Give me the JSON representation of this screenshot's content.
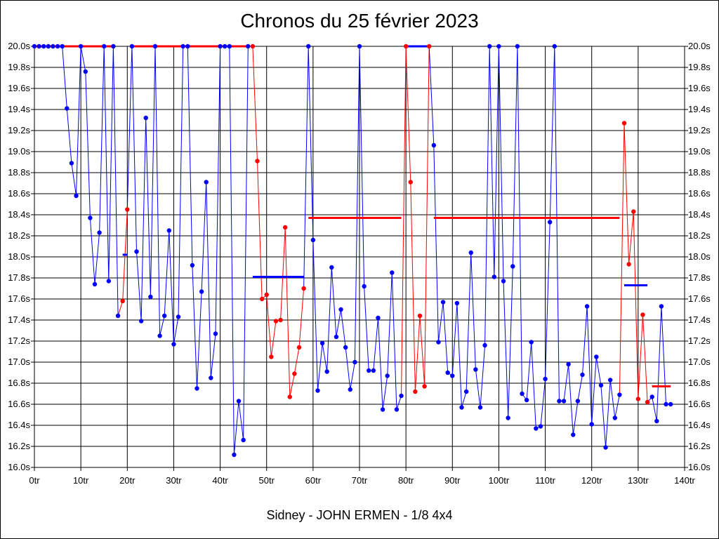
{
  "chart_data": {
    "type": "line",
    "title": "Chronos du 25 février 2023",
    "subtitle": "Sidney - JOHN ERMEN - 1/8 4x4",
    "xlabel": "",
    "ylabel": "",
    "xlim": [
      0,
      140
    ],
    "ylim": [
      16.0,
      20.0
    ],
    "grid": true,
    "x_ticks": [
      "0tr",
      "10tr",
      "20tr",
      "30tr",
      "40tr",
      "50tr",
      "60tr",
      "70tr",
      "80tr",
      "90tr",
      "100tr",
      "110tr",
      "120tr",
      "130tr",
      "140tr"
    ],
    "y_ticks": [
      "16.0s",
      "16.2s",
      "16.4s",
      "16.6s",
      "16.8s",
      "17.0s",
      "17.2s",
      "17.4s",
      "17.6s",
      "17.8s",
      "18.0s",
      "18.2s",
      "18.4s",
      "18.6s",
      "18.8s",
      "19.0s",
      "19.2s",
      "19.4s",
      "19.6s",
      "19.8s",
      "20.0s"
    ],
    "colors": {
      "blue": "#0000ff",
      "red": "#ff0000",
      "grid": "#000000"
    },
    "series": [
      {
        "color": "#0000ff",
        "points": [
          [
            0,
            20.0
          ],
          [
            1,
            20.0
          ],
          [
            2,
            20.0
          ],
          [
            3,
            20.0
          ],
          [
            4,
            20.0
          ],
          [
            5,
            20.0
          ],
          [
            6,
            20.0
          ],
          [
            7,
            19.41
          ],
          [
            8,
            18.89
          ],
          [
            9,
            18.58
          ],
          [
            10,
            20.0
          ],
          [
            11,
            19.76
          ],
          [
            12,
            18.37
          ],
          [
            13,
            17.74
          ],
          [
            14,
            18.23
          ],
          [
            15,
            20.0
          ],
          [
            16,
            17.77
          ],
          [
            17,
            20.0
          ],
          [
            18,
            17.44
          ]
        ]
      },
      {
        "color": "#ff0000",
        "points": [
          [
            19,
            17.58
          ],
          [
            20,
            18.45
          ]
        ]
      },
      {
        "color": "#0000ff",
        "points": [
          [
            21,
            20.0
          ],
          [
            22,
            18.05
          ],
          [
            23,
            17.39
          ],
          [
            24,
            19.32
          ],
          [
            25,
            17.62
          ],
          [
            26,
            20.0
          ],
          [
            27,
            17.25
          ],
          [
            28,
            17.44
          ],
          [
            29,
            18.25
          ],
          [
            30,
            17.17
          ],
          [
            31,
            17.43
          ],
          [
            32,
            20.0
          ],
          [
            33,
            20.0
          ],
          [
            34,
            17.92
          ],
          [
            35,
            16.75
          ],
          [
            36,
            17.67
          ],
          [
            37,
            18.71
          ],
          [
            38,
            16.85
          ],
          [
            39,
            17.27
          ],
          [
            40,
            20.0
          ],
          [
            41,
            20.0
          ],
          [
            42,
            20.0
          ],
          [
            43,
            16.12
          ],
          [
            44,
            16.63
          ],
          [
            45,
            16.26
          ],
          [
            46,
            20.0
          ]
        ]
      },
      {
        "color": "#ff0000",
        "points": [
          [
            47,
            20.0
          ],
          [
            48,
            18.91
          ],
          [
            49,
            17.6
          ],
          [
            50,
            17.64
          ],
          [
            51,
            17.05
          ],
          [
            52,
            17.39
          ],
          [
            53,
            17.4
          ],
          [
            54,
            18.28
          ],
          [
            55,
            16.67
          ],
          [
            56,
            16.89
          ],
          [
            57,
            17.14
          ],
          [
            58,
            17.7
          ]
        ]
      },
      {
        "color": "#0000ff",
        "points": [
          [
            59,
            20.0
          ],
          [
            60,
            18.16
          ],
          [
            61,
            16.73
          ],
          [
            62,
            17.18
          ],
          [
            63,
            16.91
          ],
          [
            64,
            17.9
          ],
          [
            65,
            17.24
          ],
          [
            66,
            17.5
          ],
          [
            67,
            17.14
          ],
          [
            68,
            16.74
          ],
          [
            69,
            17.0
          ],
          [
            70,
            20.0
          ],
          [
            71,
            17.72
          ],
          [
            72,
            16.92
          ],
          [
            73,
            16.92
          ],
          [
            74,
            17.42
          ],
          [
            75,
            16.55
          ],
          [
            76,
            16.87
          ],
          [
            77,
            17.85
          ],
          [
            78,
            16.55
          ],
          [
            79,
            16.68
          ]
        ]
      },
      {
        "color": "#ff0000",
        "points": [
          [
            80,
            20.0
          ],
          [
            81,
            18.71
          ],
          [
            82,
            16.72
          ],
          [
            83,
            17.44
          ],
          [
            84,
            16.77
          ],
          [
            85,
            20.0
          ]
        ]
      },
      {
        "color": "#0000ff",
        "points": [
          [
            86,
            19.06
          ],
          [
            87,
            17.19
          ],
          [
            88,
            17.57
          ],
          [
            89,
            16.9
          ],
          [
            90,
            16.87
          ],
          [
            91,
            17.56
          ],
          [
            92,
            16.57
          ],
          [
            93,
            16.72
          ],
          [
            94,
            18.04
          ],
          [
            95,
            16.93
          ],
          [
            96,
            16.57
          ],
          [
            97,
            17.16
          ],
          [
            98,
            20.0
          ],
          [
            99,
            17.81
          ],
          [
            100,
            20.0
          ],
          [
            101,
            17.77
          ],
          [
            102,
            16.47
          ],
          [
            103,
            17.91
          ],
          [
            104,
            20.0
          ],
          [
            105,
            16.7
          ],
          [
            106,
            16.64
          ],
          [
            107,
            17.19
          ],
          [
            108,
            16.37
          ],
          [
            109,
            16.39
          ],
          [
            110,
            16.84
          ],
          [
            111,
            18.33
          ],
          [
            112,
            20.0
          ],
          [
            113,
            16.63
          ],
          [
            114,
            16.63
          ],
          [
            115,
            16.98
          ],
          [
            116,
            16.31
          ],
          [
            117,
            16.63
          ],
          [
            118,
            16.88
          ],
          [
            119,
            17.53
          ],
          [
            120,
            16.41
          ],
          [
            121,
            17.05
          ],
          [
            122,
            16.78
          ],
          [
            123,
            16.19
          ],
          [
            124,
            16.83
          ],
          [
            125,
            16.47
          ],
          [
            126,
            16.69
          ]
        ]
      },
      {
        "color": "#ff0000",
        "points": [
          [
            127,
            19.27
          ],
          [
            128,
            17.93
          ],
          [
            129,
            18.43
          ],
          [
            130,
            16.65
          ],
          [
            131,
            17.45
          ],
          [
            132,
            16.62
          ]
        ]
      },
      {
        "color": "#0000ff",
        "points": [
          [
            133,
            16.67
          ],
          [
            134,
            16.44
          ],
          [
            135,
            17.53
          ],
          [
            136,
            16.6
          ],
          [
            137,
            16.6
          ]
        ]
      }
    ],
    "averages": [
      {
        "color": "#ff0000",
        "x": [
          0,
          17
        ],
        "y": 20.0
      },
      {
        "color": "#0000ff",
        "x": [
          19,
          20
        ],
        "y": 18.02
      },
      {
        "color": "#ff0000",
        "x": [
          21,
          46
        ],
        "y": 20.0
      },
      {
        "color": "#0000ff",
        "x": [
          47,
          58
        ],
        "y": 17.81
      },
      {
        "color": "#ff0000",
        "x": [
          59,
          79
        ],
        "y": 18.37
      },
      {
        "color": "#0000ff",
        "x": [
          80,
          85
        ],
        "y": 20.0
      },
      {
        "color": "#ff0000",
        "x": [
          86,
          126
        ],
        "y": 18.37
      },
      {
        "color": "#0000ff",
        "x": [
          127,
          132
        ],
        "y": 17.73
      },
      {
        "color": "#ff0000",
        "x": [
          133,
          137
        ],
        "y": 16.77
      }
    ]
  }
}
